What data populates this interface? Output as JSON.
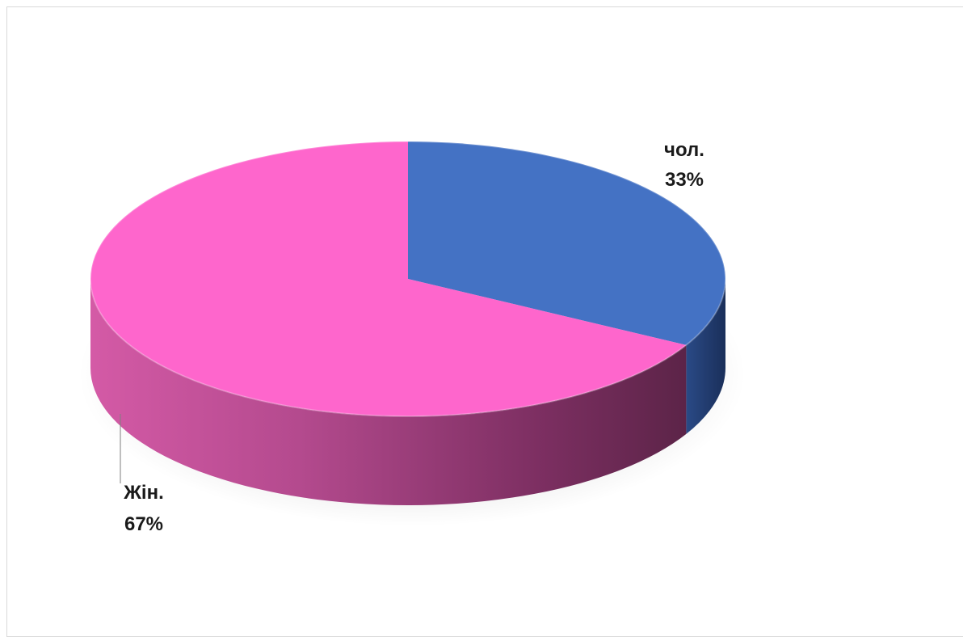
{
  "chart_data": {
    "type": "pie",
    "style": "3d",
    "categories": [
      "чол.",
      "Жін."
    ],
    "values": [
      33,
      67
    ],
    "unit": "%",
    "colors": [
      "#4472c4",
      "#fe66cc"
    ],
    "data_labels": [
      {
        "category": "чол.",
        "value": "33%"
      },
      {
        "category": "Жін.",
        "value": "67%"
      }
    ],
    "title": "",
    "legend": "none"
  }
}
